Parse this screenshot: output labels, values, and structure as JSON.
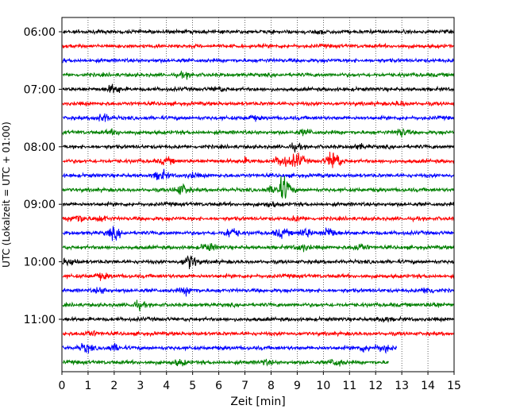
{
  "chart_data": {
    "type": "line",
    "xlabel": "Zeit  [min]",
    "ylabel": "UTC (Lokalzeit = UTC + 01:00)",
    "xlim": [
      0,
      15
    ],
    "x_ticks": [
      "0",
      "1",
      "2",
      "3",
      "4",
      "5",
      "6",
      "7",
      "8",
      "9",
      "10",
      "11",
      "12",
      "13",
      "14",
      "15"
    ],
    "y_tick_labels": [
      "06:00",
      "07:00",
      "08:00",
      "09:00",
      "10:00",
      "11:00"
    ],
    "y_ticks_row_index": [
      0,
      4,
      8,
      12,
      16,
      20
    ],
    "grid": "vertical dotted",
    "color_cycle": [
      "#000000",
      "#ff0000",
      "#0000ff",
      "#008000"
    ],
    "series_start": "06:00",
    "series_interval_min": 15,
    "traces": [
      {
        "end": 15,
        "events": [
          [
            10.0,
            1.5
          ]
        ]
      },
      {
        "end": 15,
        "events": []
      },
      {
        "end": 15,
        "events": []
      },
      {
        "end": 15,
        "events": [
          [
            4.7,
            1.5
          ]
        ]
      },
      {
        "end": 15,
        "events": [
          [
            2.0,
            3.5
          ],
          [
            6.0,
            1.5
          ]
        ]
      },
      {
        "end": 15,
        "events": [
          [
            13.0,
            1.5
          ]
        ]
      },
      {
        "end": 15,
        "events": [
          [
            1.6,
            3.0
          ],
          [
            7.3,
            1.5
          ]
        ]
      },
      {
        "end": 15,
        "events": [
          [
            2.0,
            1.5
          ],
          [
            9.3,
            2.0
          ],
          [
            13.0,
            3.0
          ]
        ]
      },
      {
        "end": 15,
        "events": [
          [
            8.9,
            2.0
          ],
          [
            11.4,
            1.5
          ]
        ]
      },
      {
        "end": 15,
        "events": [
          [
            4.0,
            2.0
          ],
          [
            7.0,
            1.5
          ],
          [
            8.4,
            4.5
          ],
          [
            9.0,
            5.5
          ],
          [
            10.4,
            8.0
          ]
        ]
      },
      {
        "end": 15,
        "events": [
          [
            3.8,
            3.5
          ],
          [
            5.0,
            1.5
          ]
        ]
      },
      {
        "end": 15,
        "events": [
          [
            4.6,
            4.0
          ],
          [
            8.5,
            10.0
          ],
          [
            8.0,
            2.0
          ]
        ]
      },
      {
        "end": 15,
        "events": [
          [
            8.0,
            1.5
          ]
        ]
      },
      {
        "end": 15,
        "events": [
          [
            0.6,
            3.5
          ],
          [
            1.5,
            2.0
          ],
          [
            9.0,
            1.5
          ]
        ]
      },
      {
        "end": 15,
        "events": [
          [
            2.0,
            4.0
          ],
          [
            6.5,
            4.0
          ],
          [
            8.4,
            3.0
          ],
          [
            9.3,
            3.5
          ],
          [
            10.2,
            4.5
          ]
        ]
      },
      {
        "end": 15,
        "events": [
          [
            5.6,
            3.0
          ],
          [
            9.2,
            2.5
          ],
          [
            11.4,
            3.0
          ]
        ]
      },
      {
        "end": 15,
        "events": [
          [
            0.3,
            3.0
          ],
          [
            4.9,
            5.5
          ]
        ]
      },
      {
        "end": 15,
        "events": [
          [
            1.5,
            2.0
          ]
        ]
      },
      {
        "end": 15,
        "events": [
          [
            1.5,
            2.0
          ],
          [
            4.8,
            2.5
          ],
          [
            14.0,
            2.5
          ]
        ]
      },
      {
        "end": 15,
        "events": [
          [
            2.9,
            2.5
          ],
          [
            14.3,
            1.5
          ]
        ]
      },
      {
        "end": 15,
        "events": [
          [
            12.3,
            1.5
          ]
        ]
      },
      {
        "end": 15,
        "events": [
          [
            1.1,
            2.0
          ]
        ]
      },
      {
        "end": 12.8,
        "events": [
          [
            0.9,
            3.0
          ],
          [
            2.0,
            2.5
          ],
          [
            11.6,
            2.5
          ],
          [
            12.3,
            3.0
          ]
        ]
      },
      {
        "end": 12.5,
        "events": [
          [
            4.5,
            2.0
          ],
          [
            10.5,
            3.0
          ],
          [
            7.8,
            1.5
          ]
        ]
      }
    ]
  }
}
